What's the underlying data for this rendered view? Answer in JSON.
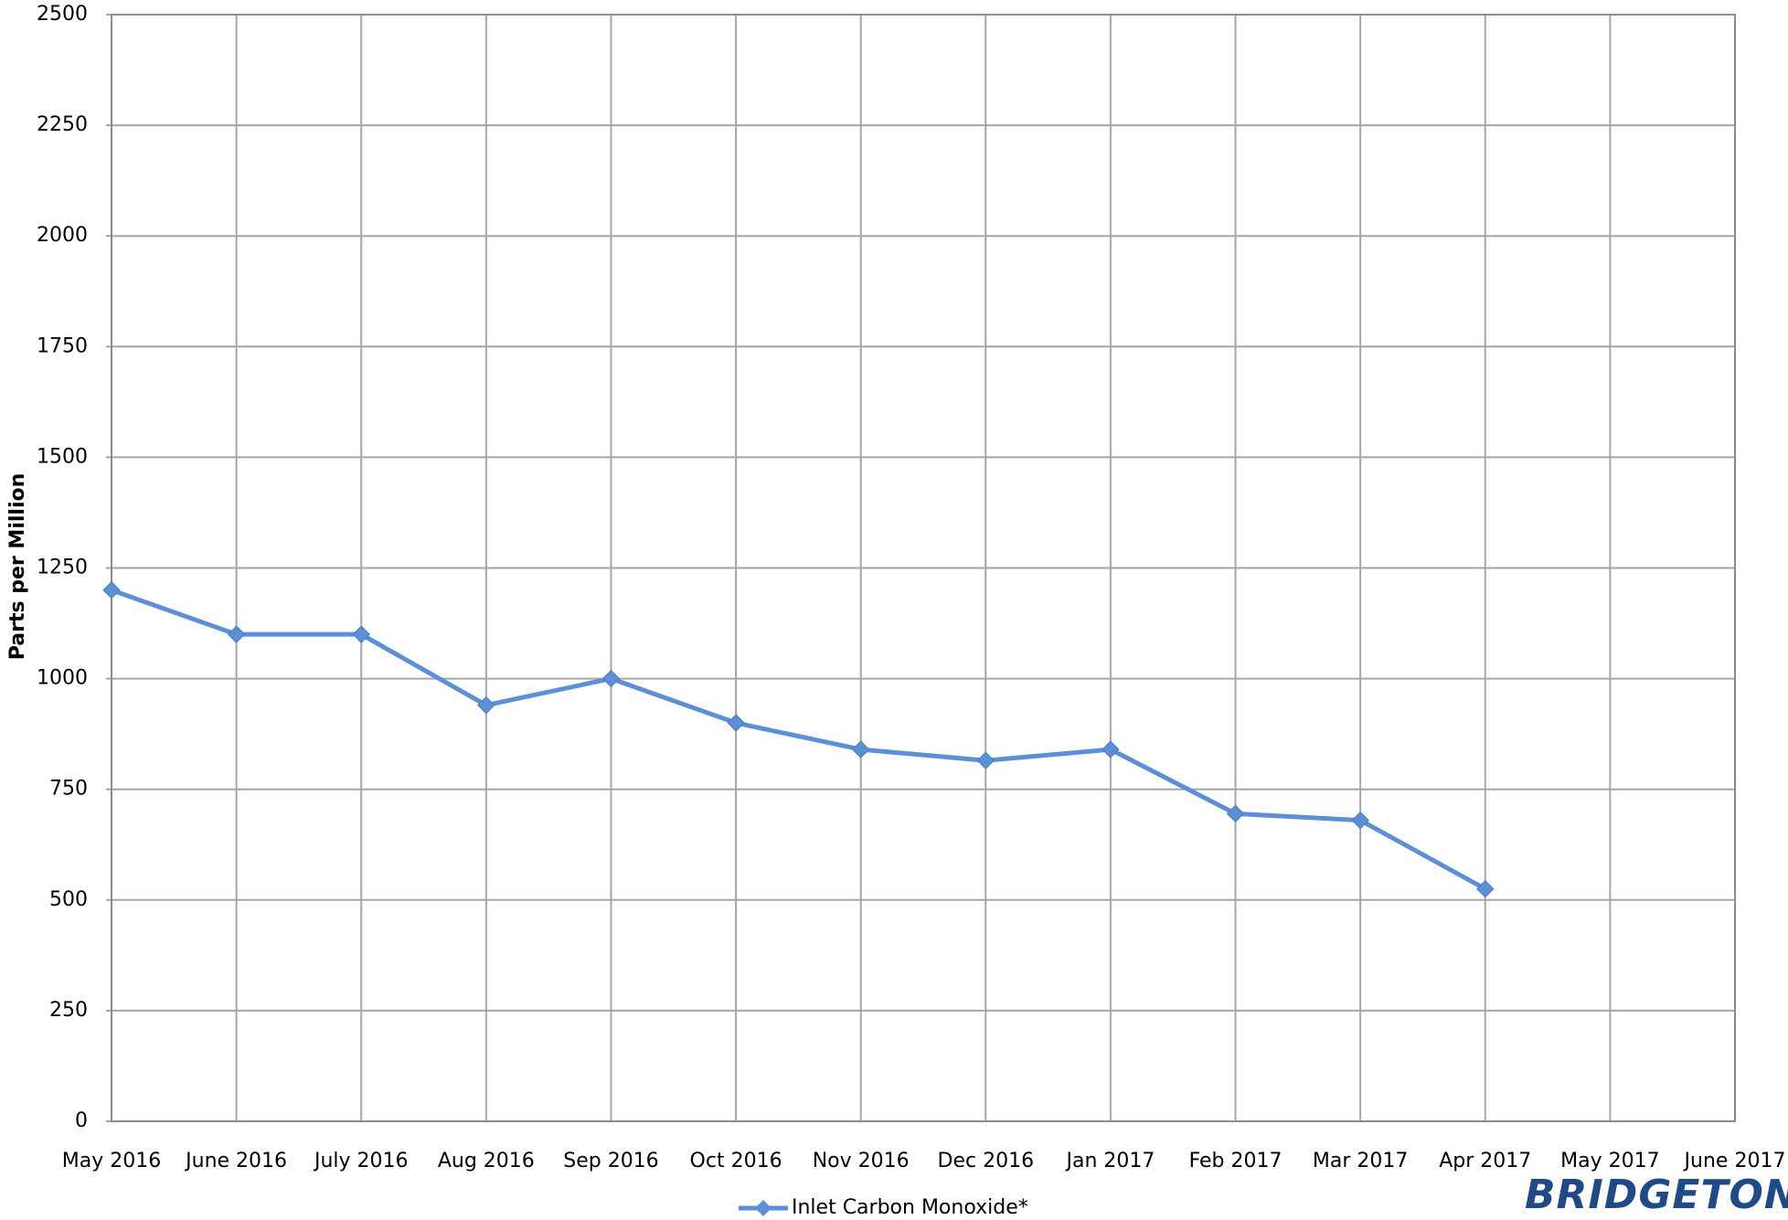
{
  "chart_data": {
    "type": "line",
    "y_label": "Parts per Million",
    "categories": [
      "May 2016",
      "June 2016",
      "July 2016",
      "Aug 2016",
      "Sep 2016",
      "Oct 2016",
      "Nov 2016",
      "Dec 2016",
      "Jan 2017",
      "Feb 2017",
      "Mar 2017",
      "Apr 2017",
      "May 2017",
      "June 2017"
    ],
    "series": [
      {
        "name": "Inlet Carbon Monoxide*",
        "color": "#5b8fd6",
        "values": [
          1200,
          1100,
          1100,
          940,
          1000,
          900,
          840,
          815,
          840,
          695,
          680,
          525,
          null,
          null
        ]
      }
    ],
    "ylim": [
      0,
      2500
    ],
    "yticks": [
      0,
      250,
      500,
      750,
      1000,
      1250,
      1500,
      1750,
      2000,
      2250,
      2500
    ],
    "grid": true,
    "legend": "bottom"
  },
  "logo": "BRIDGETON"
}
